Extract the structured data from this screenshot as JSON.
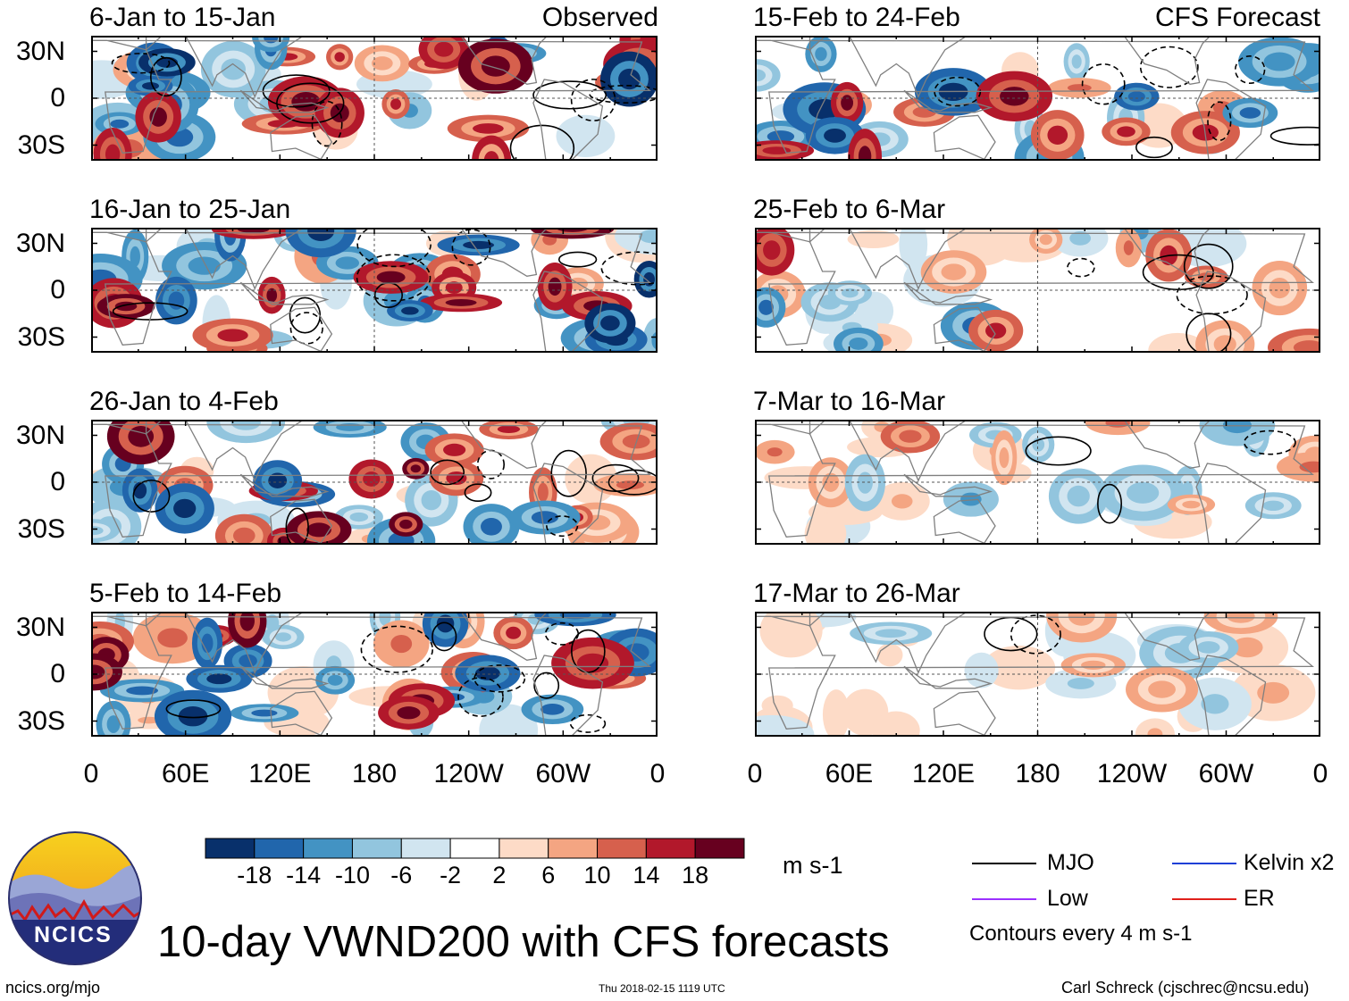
{
  "chart_data": {
    "type": "heatmap",
    "title": "10-day VWND200 with CFS forecasts",
    "variable": "VWND200",
    "units": "m s-1",
    "observed_label": "Observed",
    "forecast_label": "CFS Forecast",
    "y_tick_labels": [
      "30N",
      "0",
      "30S"
    ],
    "x_tick_labels": [
      "0",
      "60E",
      "120E",
      "180",
      "120W",
      "60W",
      "0"
    ],
    "x_range_deg_east": [
      0,
      360
    ],
    "y_range_deg": [
      -40,
      40
    ],
    "colorbar_levels": [
      -18,
      -14,
      -10,
      -6,
      -2,
      2,
      6,
      10,
      14,
      18
    ],
    "colorbar_labels": [
      "-18",
      "-14",
      "-10",
      "-6",
      "-2",
      "2",
      "6",
      "10",
      "14",
      "18"
    ],
    "colorbar_colors": [
      "#08306b",
      "#2166ac",
      "#4393c3",
      "#92c5de",
      "#d1e5f0",
      "#ffffff",
      "#fddbc7",
      "#f4a582",
      "#d6604d",
      "#b2182b",
      "#67001f"
    ],
    "panels_observed": [
      {
        "period": "6-Jan to 15-Jan"
      },
      {
        "period": "16-Jan to 25-Jan"
      },
      {
        "period": "26-Jan to 4-Feb"
      },
      {
        "period": "5-Feb to 14-Feb"
      }
    ],
    "panels_forecast": [
      {
        "period": "15-Feb to 24-Feb"
      },
      {
        "period": "25-Feb to 6-Mar"
      },
      {
        "period": "7-Mar to 16-Mar"
      },
      {
        "period": "17-Mar to 26-Mar"
      }
    ],
    "legend": [
      {
        "label": "MJO",
        "color": "#000000"
      },
      {
        "label": "Kelvin x2",
        "color": "#1f3fd6"
      },
      {
        "label": "Low",
        "color": "#9b30ff"
      },
      {
        "label": "ER",
        "color": "#e0201b"
      }
    ],
    "contour_note": "Contours every 4 m s-1"
  },
  "logo_text": "NCICS",
  "footer": {
    "website": "ncics.org/mjo",
    "timestamp": "Thu 2018-02-15 1119 UTC",
    "author": "Carl Schreck (cjschrec@ncsu.edu)"
  }
}
